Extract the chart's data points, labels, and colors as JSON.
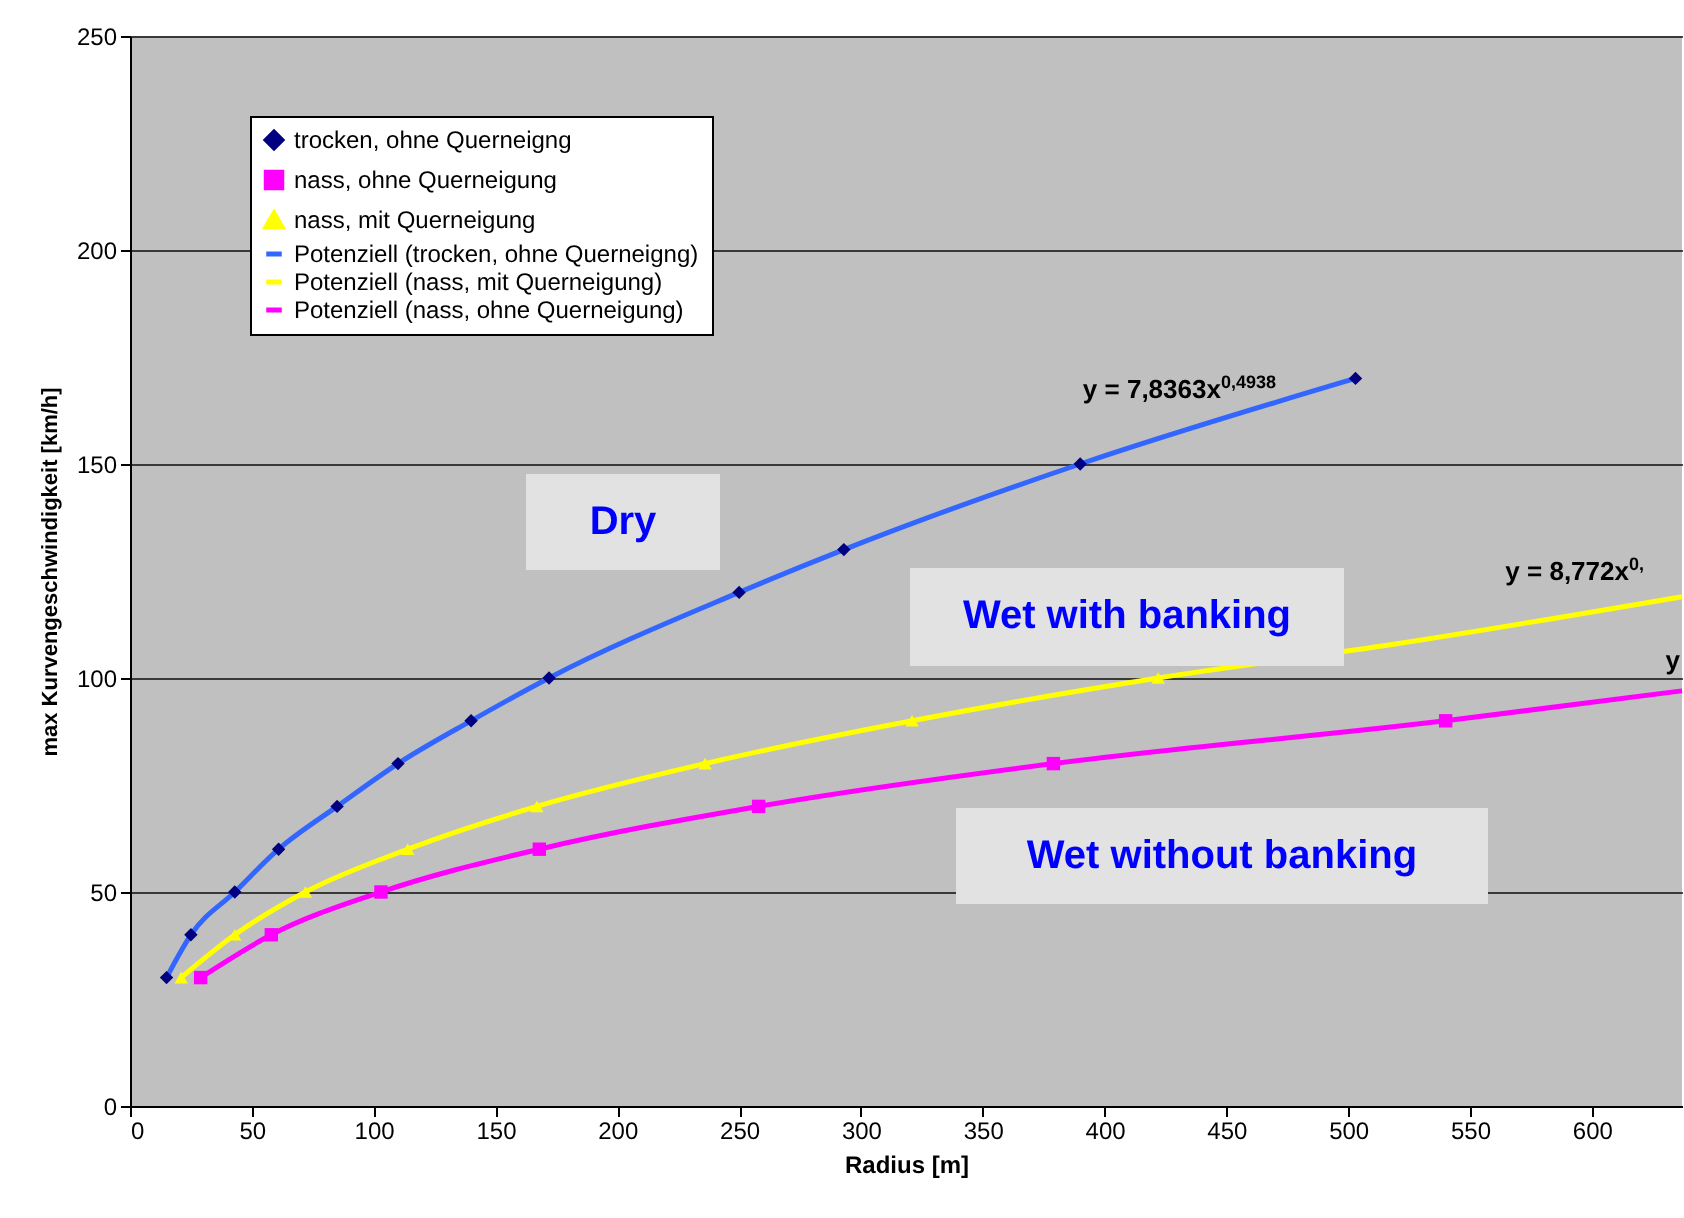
{
  "chart_data": {
    "type": "scatter",
    "xlabel": "Radius [m]",
    "ylabel": "max Kurvengeschwindigkeit [km/h]",
    "xlim": [
      0,
      637
    ],
    "xticks": [
      0,
      50,
      100,
      150,
      200,
      250,
      300,
      350,
      400,
      450,
      500,
      550,
      600
    ],
    "ylim": [
      0,
      250
    ],
    "yticks": [
      0,
      50,
      100,
      150,
      200,
      250
    ],
    "grid": "y",
    "legend": "top left",
    "series": [
      {
        "name": "trocken, ohne Querneigng",
        "marker": "diamond",
        "color": "#000080",
        "x": [
          15,
          25,
          43,
          61,
          85,
          110,
          140,
          172,
          250,
          293,
          390,
          503
        ],
        "values": [
          30,
          40,
          50,
          60,
          70,
          80,
          90,
          100,
          120,
          130,
          150,
          170
        ]
      },
      {
        "name": "nass, ohne Querneigung",
        "marker": "square",
        "color": "#ff00ff",
        "x": [
          29,
          58,
          103,
          168,
          258,
          379,
          540
        ],
        "values": [
          30,
          40,
          50,
          60,
          70,
          80,
          90
        ]
      },
      {
        "name": "nass, mit Querneigung",
        "marker": "triangle",
        "color": "#ffff00",
        "x": [
          21,
          43,
          72,
          114,
          167,
          236,
          321,
          422
        ],
        "values": [
          30,
          40,
          50,
          60,
          70,
          80,
          90,
          100
        ]
      },
      {
        "name": "Potenziell (trocken, ohne Querneigng)",
        "type": "line",
        "color": "#3366ff",
        "x": [
          15,
          25,
          43,
          61,
          85,
          110,
          140,
          172,
          250,
          293,
          390,
          503
        ],
        "values": [
          30,
          40,
          50,
          60,
          70,
          80,
          90,
          100,
          120,
          130,
          150,
          170
        ]
      },
      {
        "name": "Potenziell (nass, mit Querneigung)",
        "type": "line",
        "color": "#ffff00",
        "x": [
          21,
          43,
          72,
          114,
          167,
          236,
          321,
          422,
          520,
          637
        ],
        "values": [
          30,
          40,
          50,
          60,
          70,
          80,
          90,
          100,
          108,
          119
        ]
      },
      {
        "name": "Potenziell (nass, ohne Querneigung)",
        "type": "line",
        "color": "#ff00ff",
        "x": [
          29,
          58,
          103,
          168,
          258,
          379,
          540,
          637
        ],
        "values": [
          30,
          40,
          50,
          60,
          70,
          80,
          90,
          97
        ]
      }
    ],
    "annotations": [
      "y = 7,8363x$^{0,4938}$",
      "y = 8,772x$^{0,}$",
      "y",
      "Dry",
      "Wet with banking",
      "Wet without banking"
    ]
  }
}
